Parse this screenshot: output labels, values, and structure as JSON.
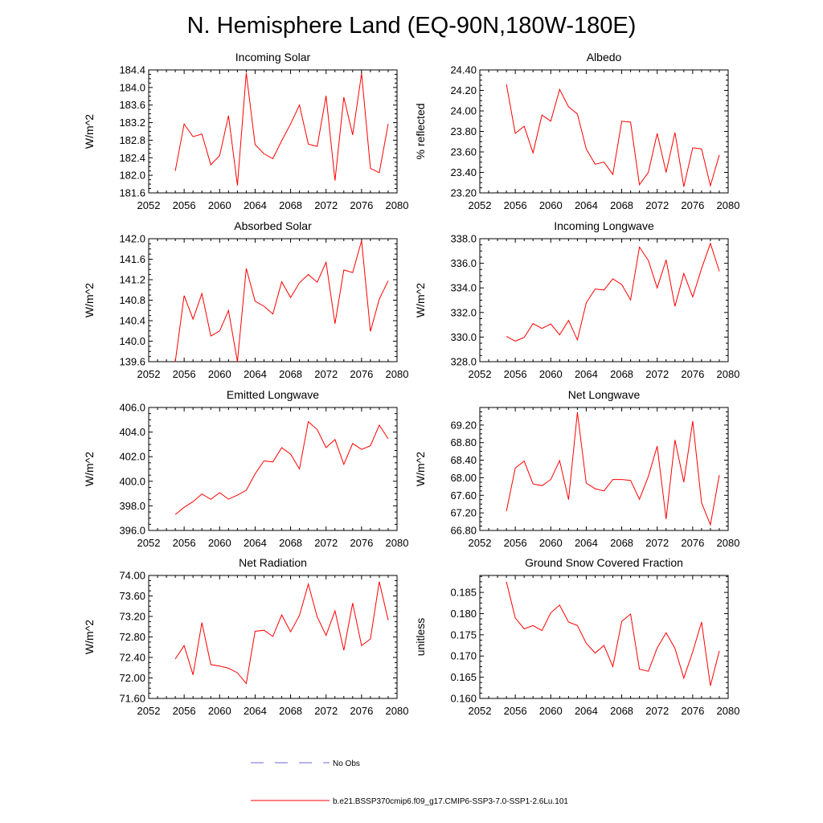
{
  "title": "N. Hemisphere Land (EQ-90N,180W-180E)",
  "legend": {
    "items": [
      {
        "label": "No Obs",
        "color": "#6a6adc",
        "style": "dashed"
      },
      {
        "label": "b.e21.BSSP370cmip6.f09_g17.CMIP6-SSP3-7.0-SSP1-2.6Lu.101",
        "color": "#ff0000",
        "style": "solid"
      }
    ]
  },
  "chart_data": [
    {
      "type": "line",
      "title": "Incoming Solar",
      "ylabel": "W/m^2",
      "xlim": [
        2052,
        2080
      ],
      "ylim": [
        181.6,
        184.4
      ],
      "xticks": [
        "2052",
        "2056",
        "2060",
        "2064",
        "2068",
        "2072",
        "2076",
        "2080"
      ],
      "yticks": [
        "181.6",
        "182.0",
        "182.4",
        "182.8",
        "183.2",
        "183.6",
        "184.0",
        "184.4"
      ],
      "series": [
        {
          "color": "#ff0000",
          "x": [
            2055,
            2056,
            2057,
            2058,
            2059,
            2060,
            2061,
            2062,
            2063,
            2064,
            2065,
            2066,
            2067,
            2068,
            2069,
            2070,
            2071,
            2072,
            2073,
            2074,
            2075,
            2076,
            2077,
            2078,
            2079
          ],
          "y": [
            182.1,
            183.17,
            182.88,
            182.94,
            182.24,
            182.45,
            183.36,
            181.77,
            184.33,
            182.7,
            182.49,
            182.38,
            182.79,
            183.17,
            183.6,
            182.71,
            182.66,
            183.81,
            181.88,
            183.78,
            182.92,
            184.32,
            182.16,
            182.06,
            183.17
          ]
        }
      ]
    },
    {
      "type": "line",
      "title": "Albedo",
      "ylabel": "% reflected",
      "xlim": [
        2052,
        2080
      ],
      "ylim": [
        23.2,
        24.4
      ],
      "xticks": [
        "2052",
        "2056",
        "2060",
        "2064",
        "2068",
        "2072",
        "2076",
        "2080"
      ],
      "yticks": [
        "23.20",
        "23.40",
        "23.60",
        "23.80",
        "24.00",
        "24.20",
        "24.40"
      ],
      "series": [
        {
          "color": "#ff0000",
          "x": [
            2055,
            2056,
            2057,
            2058,
            2059,
            2060,
            2061,
            2062,
            2063,
            2064,
            2065,
            2066,
            2067,
            2068,
            2069,
            2070,
            2071,
            2072,
            2073,
            2074,
            2075,
            2076,
            2077,
            2078,
            2079
          ],
          "y": [
            24.26,
            23.78,
            23.85,
            23.59,
            23.96,
            23.9,
            24.21,
            24.04,
            23.97,
            23.63,
            23.48,
            23.5,
            23.38,
            23.9,
            23.89,
            23.28,
            23.4,
            23.78,
            23.4,
            23.79,
            23.26,
            23.64,
            23.63,
            23.27,
            23.57
          ]
        }
      ]
    },
    {
      "type": "line",
      "title": "Absorbed Solar",
      "ylabel": "W/m^2",
      "xlim": [
        2052,
        2080
      ],
      "ylim": [
        139.6,
        142.0
      ],
      "xticks": [
        "2052",
        "2056",
        "2060",
        "2064",
        "2068",
        "2072",
        "2076",
        "2080"
      ],
      "yticks": [
        "139.6",
        "140.0",
        "140.4",
        "140.8",
        "141.2",
        "141.6",
        "142.0"
      ],
      "series": [
        {
          "color": "#ff0000",
          "x": [
            2055,
            2056,
            2057,
            2058,
            2059,
            2060,
            2061,
            2062,
            2063,
            2064,
            2065,
            2066,
            2067,
            2068,
            2069,
            2070,
            2071,
            2072,
            2073,
            2074,
            2075,
            2076,
            2077,
            2078,
            2079
          ],
          "y": [
            139.6,
            140.89,
            140.43,
            140.93,
            140.1,
            140.2,
            140.6,
            139.6,
            141.42,
            140.78,
            140.68,
            140.53,
            141.16,
            140.85,
            141.14,
            141.3,
            141.15,
            141.54,
            140.34,
            141.39,
            141.34,
            141.96,
            140.19,
            140.82,
            141.18
          ]
        }
      ]
    },
    {
      "type": "line",
      "title": "Incoming Longwave",
      "ylabel": "W/m^2",
      "xlim": [
        2052,
        2080
      ],
      "ylim": [
        328.0,
        338.0
      ],
      "xticks": [
        "2052",
        "2056",
        "2060",
        "2064",
        "2068",
        "2072",
        "2076",
        "2080"
      ],
      "yticks": [
        "328.0",
        "330.0",
        "332.0",
        "334.0",
        "336.0",
        "338.0"
      ],
      "series": [
        {
          "color": "#ff0000",
          "x": [
            2055,
            2056,
            2057,
            2058,
            2059,
            2060,
            2061,
            2062,
            2063,
            2064,
            2065,
            2066,
            2067,
            2068,
            2069,
            2070,
            2071,
            2072,
            2073,
            2074,
            2075,
            2076,
            2077,
            2078,
            2079
          ],
          "y": [
            330.05,
            329.67,
            329.97,
            331.1,
            330.7,
            331.07,
            330.18,
            331.35,
            329.77,
            332.78,
            333.91,
            333.83,
            334.74,
            334.27,
            333.02,
            337.32,
            336.23,
            334.0,
            336.28,
            332.5,
            335.17,
            333.26,
            335.57,
            337.62,
            335.35
          ]
        }
      ]
    },
    {
      "type": "line",
      "title": "Emitted Longwave",
      "ylabel": "W/m^2",
      "xlim": [
        2052,
        2080
      ],
      "ylim": [
        396.0,
        406.0
      ],
      "xticks": [
        "2052",
        "2056",
        "2060",
        "2064",
        "2068",
        "2072",
        "2076",
        "2080"
      ],
      "yticks": [
        "396.0",
        "398.0",
        "400.0",
        "402.0",
        "404.0",
        "406.0"
      ],
      "series": [
        {
          "color": "#ff0000",
          "x": [
            2055,
            2056,
            2057,
            2058,
            2059,
            2060,
            2061,
            2062,
            2063,
            2064,
            2065,
            2066,
            2067,
            2068,
            2069,
            2070,
            2071,
            2072,
            2073,
            2074,
            2075,
            2076,
            2077,
            2078,
            2079
          ],
          "y": [
            397.29,
            397.88,
            398.34,
            398.97,
            398.53,
            399.07,
            398.54,
            398.87,
            399.27,
            400.6,
            401.66,
            401.57,
            402.73,
            402.2,
            401.0,
            404.85,
            404.2,
            402.74,
            403.39,
            401.37,
            403.07,
            402.59,
            402.89,
            404.57,
            403.46
          ]
        }
      ]
    },
    {
      "type": "line",
      "title": "Net Longwave",
      "ylabel": "W/m^2",
      "xlim": [
        2052,
        2080
      ],
      "ylim": [
        66.8,
        69.6
      ],
      "xticks": [
        "2052",
        "2056",
        "2060",
        "2064",
        "2068",
        "2072",
        "2076",
        "2080"
      ],
      "yticks": [
        "66.80",
        "67.20",
        "67.60",
        "68.00",
        "68.40",
        "68.80",
        "69.20"
      ],
      "series": [
        {
          "color": "#ff0000",
          "x": [
            2055,
            2056,
            2057,
            2058,
            2059,
            2060,
            2061,
            2062,
            2063,
            2064,
            2065,
            2066,
            2067,
            2068,
            2069,
            2070,
            2071,
            2072,
            2073,
            2074,
            2075,
            2076,
            2077,
            2078,
            2079
          ],
          "y": [
            67.24,
            68.22,
            68.38,
            67.86,
            67.82,
            67.96,
            68.39,
            67.5,
            69.49,
            67.88,
            67.75,
            67.7,
            67.96,
            67.96,
            67.94,
            67.51,
            68.03,
            68.72,
            67.06,
            68.86,
            67.9,
            69.29,
            67.43,
            66.93,
            68.06
          ]
        }
      ]
    },
    {
      "type": "line",
      "title": "Net Radiation",
      "ylabel": "W/m^2",
      "xlim": [
        2052,
        2080
      ],
      "ylim": [
        71.6,
        74.0
      ],
      "xticks": [
        "2052",
        "2056",
        "2060",
        "2064",
        "2068",
        "2072",
        "2076",
        "2080"
      ],
      "yticks": [
        "71.60",
        "72.00",
        "72.40",
        "72.80",
        "73.20",
        "73.60",
        "74.00"
      ],
      "series": [
        {
          "color": "#ff0000",
          "x": [
            2055,
            2056,
            2057,
            2058,
            2059,
            2060,
            2061,
            2062,
            2063,
            2064,
            2065,
            2066,
            2067,
            2068,
            2069,
            2070,
            2071,
            2072,
            2073,
            2074,
            2075,
            2076,
            2077,
            2078,
            2079
          ],
          "y": [
            72.37,
            72.63,
            72.06,
            73.08,
            72.26,
            72.23,
            72.19,
            72.1,
            71.89,
            72.91,
            72.93,
            72.81,
            73.23,
            72.9,
            73.22,
            73.83,
            73.19,
            72.83,
            73.31,
            72.54,
            73.46,
            72.63,
            72.76,
            73.88,
            73.13
          ]
        }
      ]
    },
    {
      "type": "line",
      "title": "Ground Snow Covered Fraction",
      "ylabel": "unitless",
      "xlim": [
        2052,
        2080
      ],
      "ylim": [
        0.16,
        0.189
      ],
      "xticks": [
        "2052",
        "2056",
        "2060",
        "2064",
        "2068",
        "2072",
        "2076",
        "2080"
      ],
      "yticks": [
        "0.160",
        "0.165",
        "0.170",
        "0.175",
        "0.180",
        "0.185"
      ],
      "series": [
        {
          "color": "#ff0000",
          "x": [
            2055,
            2056,
            2057,
            2058,
            2059,
            2060,
            2061,
            2062,
            2063,
            2064,
            2065,
            2066,
            2067,
            2068,
            2069,
            2070,
            2071,
            2072,
            2073,
            2074,
            2075,
            2076,
            2077,
            2078,
            2079
          ],
          "y": [
            0.1875,
            0.179,
            0.1764,
            0.1772,
            0.176,
            0.1802,
            0.182,
            0.178,
            0.1772,
            0.173,
            0.1707,
            0.1725,
            0.1675,
            0.1782,
            0.1799,
            0.1669,
            0.1664,
            0.1719,
            0.1755,
            0.1718,
            0.1648,
            0.171,
            0.178,
            0.163,
            0.1712
          ]
        }
      ]
    }
  ]
}
